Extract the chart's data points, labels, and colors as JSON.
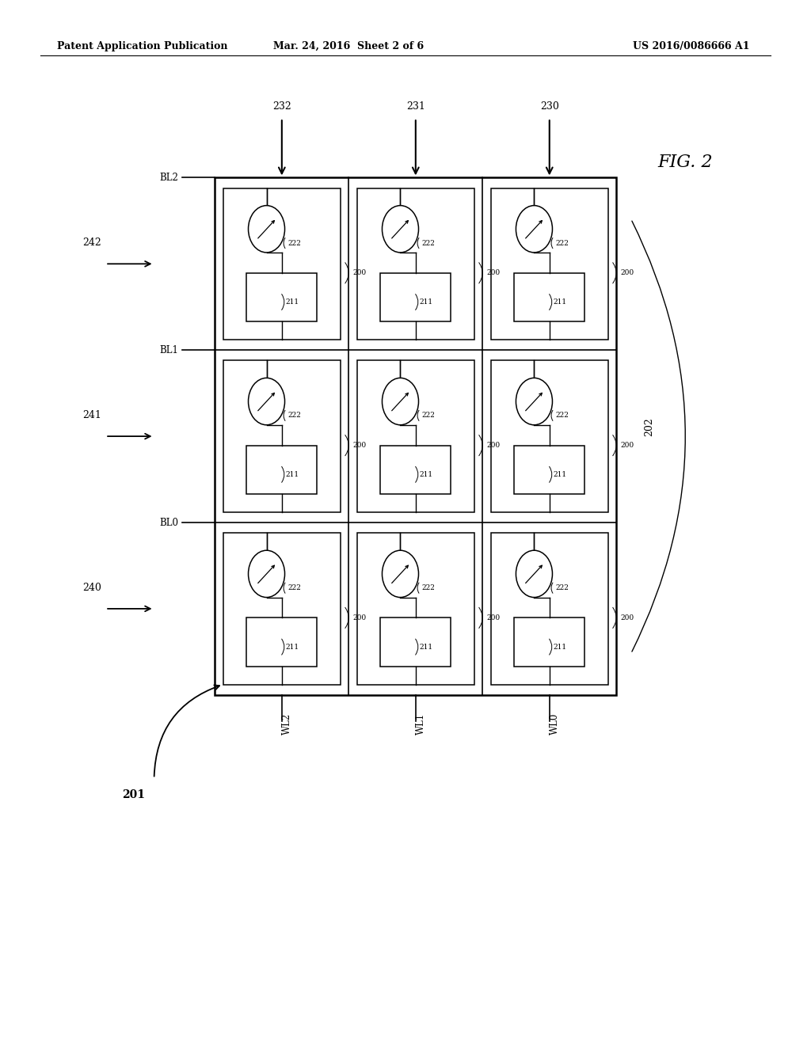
{
  "bg_color": "#ffffff",
  "fig_width": 10.24,
  "fig_height": 13.2,
  "header_left": "Patent Application Publication",
  "header_center": "Mar. 24, 2016  Sheet 2 of 6",
  "header_right": "US 2016/0086666 A1",
  "fig_label": "FIG. 2",
  "grid_label": "202",
  "array_label": "201",
  "bl_labels": [
    "BL2",
    "BL1",
    "BL0"
  ],
  "wl_labels": [
    "WL2",
    "WL1",
    "WL0"
  ],
  "row_arrow_labels": [
    "242",
    "241",
    "240"
  ],
  "col_arrow_labels": [
    "232",
    "231",
    "230"
  ],
  "ox": 0.265,
  "oy": 0.335,
  "ow": 0.495,
  "oh": 0.495
}
